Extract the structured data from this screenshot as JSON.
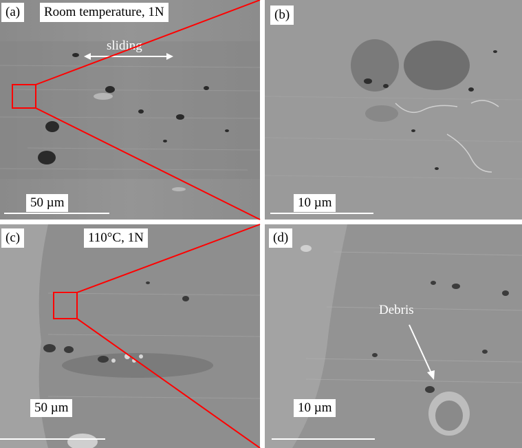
{
  "panels": {
    "a": {
      "label": "(a)",
      "condition": "Room temperature, 1N",
      "scale_bar": "50 µm",
      "sliding_label": "sliding"
    },
    "b": {
      "label": "(b)",
      "scale_bar": "10 µm"
    },
    "c": {
      "label": "(c)",
      "condition": "110°C, 1N",
      "scale_bar": "50 µm"
    },
    "d": {
      "label": "(d)",
      "scale_bar": "10 µm",
      "debris_label": "Debris"
    }
  },
  "colors": {
    "zoom_box": "#ff0000",
    "zoom_line": "#ff0000",
    "annotation": "#ffffff"
  }
}
